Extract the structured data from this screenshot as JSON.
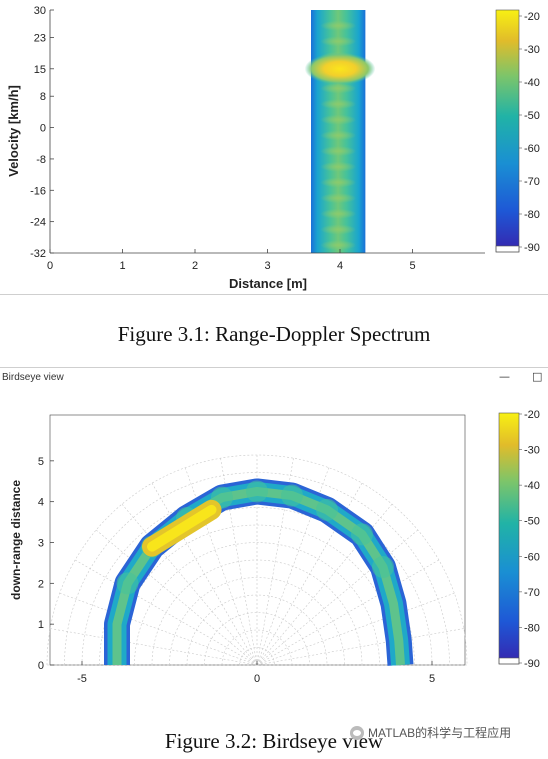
{
  "chart_data": [
    {
      "type": "heatmap",
      "title": "",
      "xlabel": "Distance [m]",
      "ylabel": "Velocity [km/h]",
      "xlim": [
        0,
        6
      ],
      "ylim": [
        -32,
        30
      ],
      "xticks": [
        "0",
        "1",
        "2",
        "3",
        "4",
        "5"
      ],
      "yticks": [
        "30",
        "23",
        "15",
        "8",
        "0",
        "-8",
        "-16",
        "-24",
        "-32"
      ],
      "colorbar": {
        "min": -90,
        "max": -20,
        "ticks": [
          "-20",
          "-30",
          "-40",
          "-50",
          "-60",
          "-70",
          "-80",
          "-90"
        ]
      },
      "band": {
        "distance_range_m": [
          3.6,
          4.35
        ],
        "velocity_range_kmh": [
          -32,
          30
        ]
      },
      "peak": {
        "distance_m": 4.0,
        "velocity_kmh": 15,
        "level_db": -30
      }
    },
    {
      "type": "heatmap",
      "title": "Birdseye view",
      "xlabel": "",
      "ylabel": "down-range distance",
      "xlim": [
        -6,
        6
      ],
      "ylim": [
        0,
        6
      ],
      "xticks": [
        "-5",
        "0",
        "5"
      ],
      "yticks": [
        "0",
        "1",
        "2",
        "3",
        "4",
        "5"
      ],
      "colorbar": {
        "min": -90,
        "max": -20,
        "ticks": [
          "-20",
          "-30",
          "-40",
          "-50",
          "-60",
          "-70",
          "-80",
          "-90"
        ]
      },
      "arc_path": [
        [
          -4.0,
          0.0
        ],
        [
          -4.0,
          1.0
        ],
        [
          -3.7,
          2.0
        ],
        [
          -3.0,
          2.9
        ],
        [
          -2.0,
          3.6
        ],
        [
          -1.0,
          4.1
        ],
        [
          0.0,
          4.25
        ],
        [
          1.0,
          4.15
        ],
        [
          2.0,
          3.8
        ],
        [
          3.0,
          3.2
        ],
        [
          3.6,
          2.4
        ],
        [
          3.9,
          1.5
        ],
        [
          4.05,
          0.6
        ],
        [
          4.1,
          0.0
        ]
      ],
      "hotspot": {
        "from": [
          -3.0,
          2.9
        ],
        "to": [
          -1.3,
          3.8
        ],
        "level_db": -25
      }
    }
  ],
  "captions": {
    "fig1": "Figure 3.1: Range-Doppler Spectrum",
    "fig2": "Figure 3.2: Birdseye view"
  },
  "window": {
    "title": "Birdseye view",
    "minimize_icon": "minimize-icon",
    "maximize_icon": "maximize-icon"
  },
  "watermark": "MATLAB的科学与工程应用",
  "colors": {
    "background_low": "#1c35a0",
    "mid": "#21a8b5",
    "high": "#f5e21a"
  }
}
